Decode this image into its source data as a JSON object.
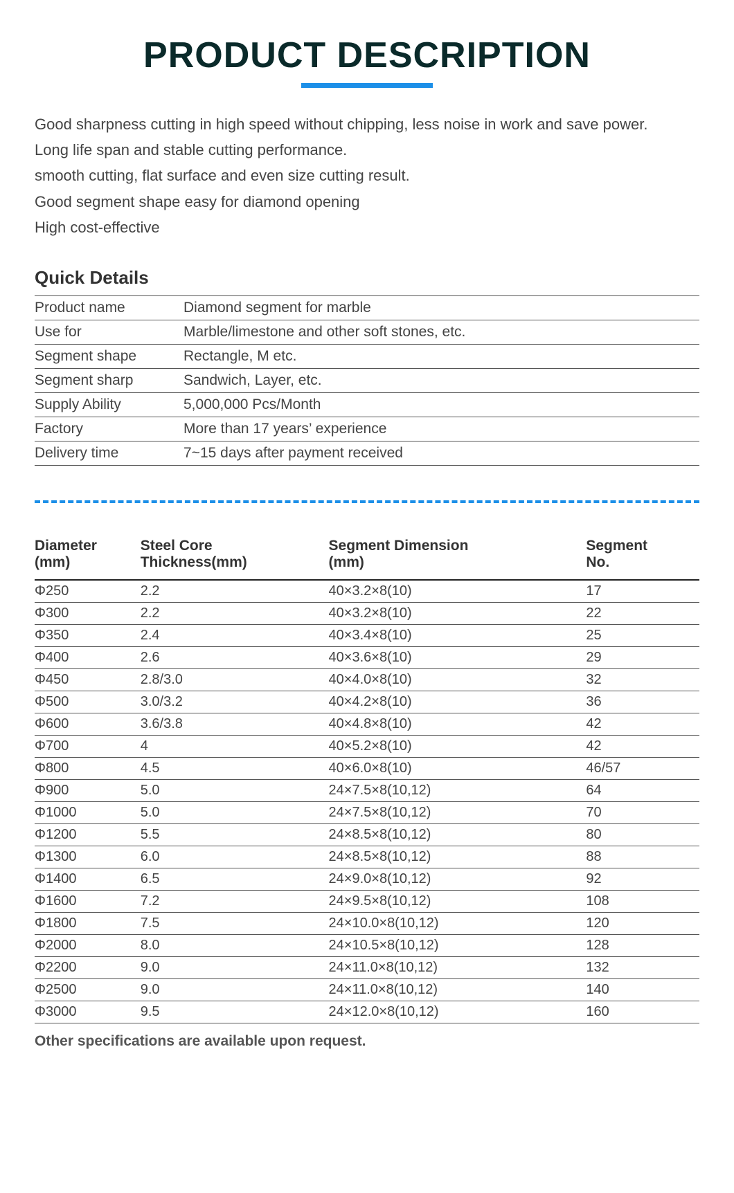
{
  "title": "PRODUCT DESCRIPTION",
  "title_color": "#0a2a2a",
  "underline_color": "#1c8fe8",
  "description_lines": [
    "Good sharpness cutting in high speed without chipping, less noise in work and save power.",
    "Long life span and stable cutting performance.",
    "smooth cutting, flat surface and even size cutting result.",
    "Good segment shape easy for diamond opening",
    "High cost-effective"
  ],
  "quick_details_heading": "Quick Details",
  "quick_details": [
    {
      "key": "Product name",
      "value": "Diamond segment for marble"
    },
    {
      "key": "Use for",
      "value": "Marble/limestone and other soft stones, etc."
    },
    {
      "key": "Segment shape",
      "value": "Rectangle, M etc."
    },
    {
      "key": "Segment sharp",
      "value": "Sandwich, Layer, etc."
    },
    {
      "key": "Supply Ability",
      "value": "5,000,000 Pcs/Month"
    },
    {
      "key": "Factory",
      "value": "More than 17 years’ experience"
    },
    {
      "key": "Delivery time",
      "value": "7~15 days after payment received"
    }
  ],
  "specs_table": {
    "type": "table",
    "columns": [
      {
        "label_line1": "Diameter",
        "label_line2": "(mm)",
        "class": "col-dia"
      },
      {
        "label_line1": "Steel Core",
        "label_line2": "Thickness(mm)",
        "class": "col-core"
      },
      {
        "label_line1": "Segment Dimension",
        "label_line2": " (mm)",
        "class": "col-seg"
      },
      {
        "label_line1": "Segment",
        "label_line2": "No.",
        "class": "col-no"
      }
    ],
    "header_border_color": "#222222",
    "row_border_color": "#555555",
    "header_fontsize": 21,
    "cell_fontsize": 20,
    "text_color": "#444444",
    "rows": [
      [
        "Φ250",
        "2.2",
        "40×3.2×8(10)",
        "17"
      ],
      [
        "Φ300",
        "2.2",
        "40×3.2×8(10)",
        "22"
      ],
      [
        "Φ350",
        "2.4",
        "40×3.4×8(10)",
        "25"
      ],
      [
        "Φ400",
        "2.6",
        "40×3.6×8(10)",
        "29"
      ],
      [
        "Φ450",
        "2.8/3.0",
        "40×4.0×8(10)",
        "32"
      ],
      [
        "Φ500",
        "3.0/3.2",
        "40×4.2×8(10)",
        "36"
      ],
      [
        "Φ600",
        "3.6/3.8",
        "40×4.8×8(10)",
        "42"
      ],
      [
        "Φ700",
        "4",
        "40×5.2×8(10)",
        "42"
      ],
      [
        "Φ800",
        "4.5",
        "40×6.0×8(10)",
        "46/57"
      ],
      [
        "Φ900",
        "5.0",
        "24×7.5×8(10,12)",
        "64"
      ],
      [
        "Φ1000",
        "5.0",
        "24×7.5×8(10,12)",
        "70"
      ],
      [
        "Φ1200",
        "5.5",
        "24×8.5×8(10,12)",
        "80"
      ],
      [
        "Φ1300",
        "6.0",
        "24×8.5×8(10,12)",
        "88"
      ],
      [
        "Φ1400",
        "6.5",
        "24×9.0×8(10,12)",
        "92"
      ],
      [
        "Φ1600",
        "7.2",
        "24×9.5×8(10,12)",
        "108"
      ],
      [
        "Φ1800",
        "7.5",
        "24×10.0×8(10,12)",
        "120"
      ],
      [
        "Φ2000",
        "8.0",
        "24×10.5×8(10,12)",
        "128"
      ],
      [
        "Φ2200",
        "9.0",
        "24×11.0×8(10,12)",
        "132"
      ],
      [
        "Φ2500",
        "9.0",
        "24×11.0×8(10,12)",
        "140"
      ],
      [
        "Φ3000",
        "9.5",
        "24×12.0×8(10,12)",
        "160"
      ]
    ]
  },
  "footnote": "Other specifications are available upon request.",
  "divider_color": "#1c8fe8"
}
